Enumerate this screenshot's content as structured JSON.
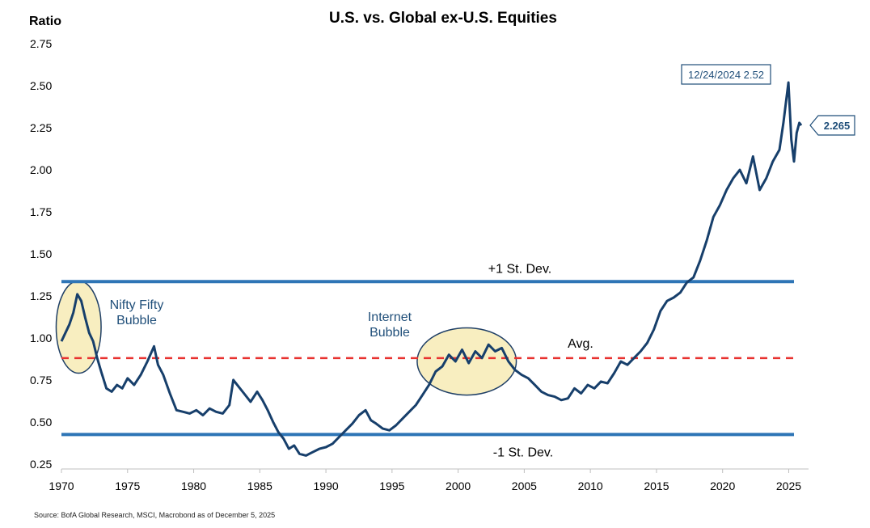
{
  "chart_data": {
    "type": "line",
    "title": "U.S. vs. Global ex-U.S. Equities",
    "ylabel": "Ratio",
    "xlabel": "",
    "xlim": [
      1970,
      2026.5
    ],
    "ylim": [
      0.22,
      2.78
    ],
    "x_ticks": [
      "1970",
      "1975",
      "1980",
      "1985",
      "1990",
      "1995",
      "2000",
      "2005",
      "2010",
      "2015",
      "2020",
      "2025"
    ],
    "y_ticks": [
      "0.25",
      "0.50",
      "0.75",
      "1.00",
      "1.25",
      "1.50",
      "1.75",
      "2.00",
      "2.25",
      "2.50",
      "2.75"
    ],
    "series": [
      {
        "color": "#173f6b",
        "x": [
          1970.0,
          1970.3,
          1970.6,
          1970.9,
          1971.2,
          1971.5,
          1971.8,
          1972.1,
          1972.4,
          1972.7,
          1973.0,
          1973.4,
          1973.8,
          1974.2,
          1974.6,
          1975.0,
          1975.5,
          1976.0,
          1976.5,
          1977.0,
          1977.3,
          1977.7,
          1978.2,
          1978.7,
          1979.2,
          1979.7,
          1980.2,
          1980.7,
          1981.2,
          1981.7,
          1982.2,
          1982.7,
          1983.0,
          1983.4,
          1983.8,
          1984.3,
          1984.8,
          1985.2,
          1985.6,
          1986.0,
          1986.4,
          1986.8,
          1987.2,
          1987.6,
          1988.0,
          1988.5,
          1989.0,
          1989.5,
          1990.0,
          1990.5,
          1991.0,
          1991.5,
          1992.0,
          1992.5,
          1993.0,
          1993.4,
          1993.8,
          1994.3,
          1994.8,
          1995.3,
          1995.8,
          1996.3,
          1996.8,
          1997.3,
          1997.8,
          1998.3,
          1998.8,
          1999.3,
          1999.8,
          2000.3,
          2000.8,
          2001.3,
          2001.8,
          2002.3,
          2002.8,
          2003.3,
          2003.8,
          2004.3,
          2004.8,
          2005.3,
          2005.8,
          2006.3,
          2006.8,
          2007.3,
          2007.8,
          2008.3,
          2008.8,
          2009.3,
          2009.8,
          2010.3,
          2010.8,
          2011.3,
          2011.8,
          2012.3,
          2012.8,
          2013.3,
          2013.8,
          2014.3,
          2014.8,
          2015.3,
          2015.8,
          2016.3,
          2016.8,
          2017.3,
          2017.8,
          2018.3,
          2018.8,
          2019.3,
          2019.8,
          2020.3,
          2020.8,
          2021.3,
          2021.8,
          2022.3,
          2022.8,
          2023.3,
          2023.8,
          2024.3,
          2024.6,
          2024.98,
          2025.2,
          2025.4,
          2025.6,
          2025.8,
          2025.95
        ],
        "values": [
          0.98,
          1.03,
          1.08,
          1.15,
          1.26,
          1.22,
          1.12,
          1.03,
          0.98,
          0.88,
          0.8,
          0.7,
          0.68,
          0.72,
          0.7,
          0.76,
          0.72,
          0.78,
          0.86,
          0.95,
          0.84,
          0.78,
          0.67,
          0.57,
          0.56,
          0.55,
          0.57,
          0.54,
          0.58,
          0.56,
          0.55,
          0.6,
          0.75,
          0.71,
          0.67,
          0.62,
          0.68,
          0.63,
          0.57,
          0.5,
          0.44,
          0.4,
          0.34,
          0.36,
          0.31,
          0.3,
          0.32,
          0.34,
          0.35,
          0.37,
          0.41,
          0.45,
          0.49,
          0.54,
          0.57,
          0.51,
          0.49,
          0.46,
          0.45,
          0.48,
          0.52,
          0.56,
          0.6,
          0.66,
          0.72,
          0.8,
          0.83,
          0.9,
          0.86,
          0.93,
          0.85,
          0.92,
          0.88,
          0.96,
          0.92,
          0.94,
          0.86,
          0.81,
          0.78,
          0.76,
          0.72,
          0.68,
          0.66,
          0.65,
          0.63,
          0.64,
          0.7,
          0.67,
          0.72,
          0.7,
          0.74,
          0.73,
          0.79,
          0.86,
          0.84,
          0.88,
          0.92,
          0.97,
          1.05,
          1.16,
          1.22,
          1.24,
          1.27,
          1.33,
          1.36,
          1.46,
          1.58,
          1.72,
          1.79,
          1.88,
          1.95,
          2.0,
          1.92,
          2.08,
          1.88,
          1.95,
          2.05,
          2.12,
          2.28,
          2.52,
          2.18,
          2.05,
          2.22,
          2.28,
          2.265
        ]
      }
    ],
    "reference_lines": [
      {
        "label": "+1 St. Dev.",
        "value": 1.335,
        "style": "solid",
        "color": "#2e75b6"
      },
      {
        "label": "Avg.",
        "value": 0.88,
        "style": "dashed",
        "color": "#e8312f"
      },
      {
        "label": "-1 St. Dev.",
        "value": 0.425,
        "style": "solid",
        "color": "#2e75b6"
      }
    ],
    "annotations": [
      {
        "lines": [
          "Nifty Fifty",
          "Bubble"
        ],
        "color": "#1f4e79",
        "highlight_x": [
          1969.6,
          1973.0
        ],
        "highlight_y": [
          0.79,
          1.34
        ]
      },
      {
        "lines": [
          "Internet",
          "Bubble"
        ],
        "color": "#1f4e79",
        "highlight_x": [
          1996.9,
          2004.4
        ],
        "highlight_y": [
          0.66,
          1.06
        ]
      }
    ],
    "callouts": [
      {
        "text": "12/24/2024 2.52",
        "x": 2024.98,
        "y": 2.52
      },
      {
        "text": "2.265",
        "x": 2025.95,
        "y": 2.265
      }
    ],
    "grid": false,
    "legend": "none",
    "source": "Source: BofA Global Research, MSCI, Macrobond as of December 5, 2025"
  }
}
